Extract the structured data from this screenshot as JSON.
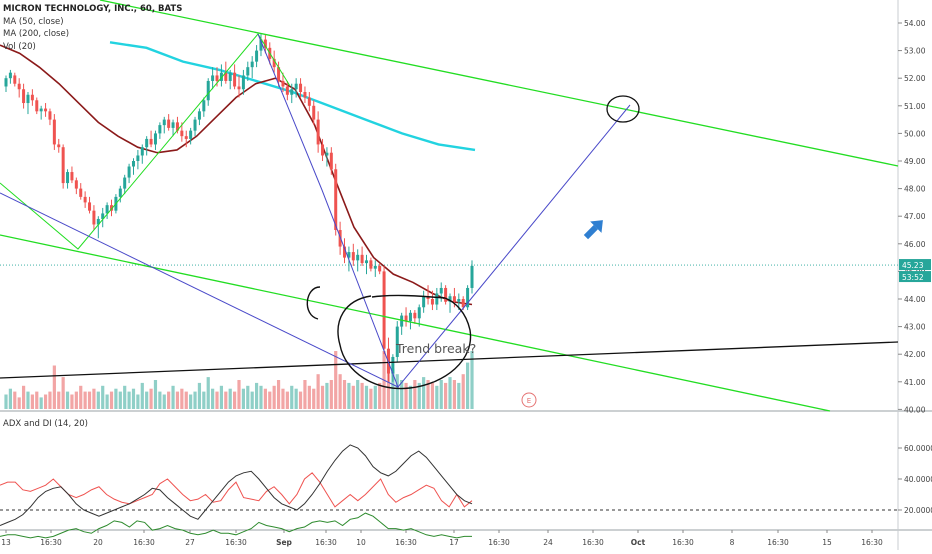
{
  "chart_data": {
    "type": "line",
    "title": "MICRON TECHNOLOGY, INC., 60, BATS",
    "series": [
      {
        "name": "MA (50, close)",
        "color": "#8b1a1a"
      },
      {
        "name": "MA (200, close)",
        "color": "#22d3e0"
      },
      {
        "name": "Vol (20)"
      }
    ],
    "y_ticks": [
      "54.00",
      "53.00",
      "52.00",
      "51.00",
      "50.00",
      "49.00",
      "48.00",
      "47.00",
      "46.00",
      "45.00",
      "44.00",
      "43.00",
      "42.00",
      "41.00",
      "40.00"
    ],
    "ylim": [
      40,
      54
    ],
    "current_price": "45.23",
    "countdown": "53:52",
    "x_ticks": [
      "13",
      "16:30",
      "20",
      "16:30",
      "27",
      "16:30",
      "Sep",
      "16:30",
      "10",
      "16:30",
      "17",
      "16:30",
      "24",
      "16:30",
      "Oct",
      "16:30",
      "8",
      "16:30",
      "15",
      "16:30"
    ],
    "annotations": {
      "trend_break_text": "Trend break?",
      "earnings_marker": "E"
    },
    "ma50": [
      53.2,
      52.9,
      52.4,
      51.8,
      51.1,
      50.4,
      49.9,
      49.5,
      49.3,
      49.4,
      49.9,
      50.6,
      51.3,
      51.8,
      52.0,
      51.6,
      50.3,
      48.4,
      46.6,
      45.5,
      44.9,
      44.6,
      44.2,
      43.9,
      43.8
    ],
    "ma200": [
      53.3,
      53.1,
      52.6,
      52.3,
      51.9,
      51.5,
      51.0,
      50.5,
      50.0,
      49.6,
      49.4
    ],
    "candles": [
      [
        51.7,
        52.1,
        51.5,
        52.0
      ],
      [
        52.0,
        52.3,
        51.8,
        52.2
      ],
      [
        52.1,
        52.2,
        51.7,
        51.8
      ],
      [
        51.8,
        52.0,
        51.3,
        51.6
      ],
      [
        51.6,
        51.8,
        50.9,
        51.1
      ],
      [
        51.1,
        51.5,
        50.7,
        51.4
      ],
      [
        51.4,
        51.6,
        51.0,
        51.2
      ],
      [
        51.2,
        51.3,
        50.7,
        50.8
      ],
      [
        50.8,
        51.0,
        50.5,
        50.9
      ],
      [
        50.9,
        51.1,
        50.6,
        50.8
      ],
      [
        50.8,
        50.9,
        50.3,
        50.5
      ],
      [
        50.5,
        50.7,
        49.4,
        49.6
      ],
      [
        49.6,
        49.8,
        49.3,
        49.5
      ],
      [
        49.5,
        49.6,
        48.0,
        48.2
      ],
      [
        48.2,
        48.7,
        48.0,
        48.6
      ],
      [
        48.6,
        48.8,
        48.2,
        48.3
      ],
      [
        48.3,
        48.4,
        47.8,
        48.0
      ],
      [
        48.0,
        48.2,
        47.6,
        47.7
      ],
      [
        47.7,
        47.9,
        47.3,
        47.5
      ],
      [
        47.5,
        47.7,
        47.1,
        47.2
      ],
      [
        47.2,
        47.4,
        46.5,
        46.7
      ],
      [
        46.7,
        47.0,
        46.2,
        46.9
      ],
      [
        46.9,
        47.3,
        46.6,
        47.1
      ],
      [
        47.1,
        47.5,
        46.9,
        47.4
      ],
      [
        47.4,
        47.6,
        47.0,
        47.2
      ],
      [
        47.2,
        47.8,
        47.1,
        47.7
      ],
      [
        47.7,
        48.1,
        47.5,
        48.0
      ],
      [
        48.0,
        48.5,
        47.8,
        48.4
      ],
      [
        48.4,
        48.9,
        48.2,
        48.8
      ],
      [
        48.8,
        49.1,
        48.5,
        49.0
      ],
      [
        49.0,
        49.4,
        48.7,
        49.2
      ],
      [
        49.2,
        49.6,
        48.9,
        49.5
      ],
      [
        49.5,
        49.9,
        49.2,
        49.8
      ],
      [
        49.8,
        50.1,
        49.5,
        49.6
      ],
      [
        49.6,
        50.1,
        49.4,
        50.0
      ],
      [
        50.0,
        50.4,
        49.8,
        50.3
      ],
      [
        50.3,
        50.6,
        50.0,
        50.5
      ],
      [
        50.5,
        50.7,
        50.1,
        50.2
      ],
      [
        50.2,
        50.5,
        49.9,
        50.4
      ],
      [
        50.4,
        50.6,
        50.0,
        50.1
      ],
      [
        50.1,
        50.4,
        49.7,
        49.9
      ],
      [
        49.9,
        50.1,
        49.5,
        49.8
      ],
      [
        49.8,
        50.2,
        49.6,
        50.1
      ],
      [
        50.1,
        50.6,
        49.9,
        50.5
      ],
      [
        50.5,
        50.9,
        50.3,
        50.8
      ],
      [
        50.8,
        51.3,
        50.6,
        51.2
      ],
      [
        51.2,
        52.0,
        51.0,
        51.9
      ],
      [
        51.9,
        52.4,
        51.6,
        52.1
      ],
      [
        52.1,
        52.4,
        51.7,
        51.9
      ],
      [
        51.9,
        52.5,
        51.7,
        52.2
      ],
      [
        52.2,
        52.6,
        51.8,
        51.9
      ],
      [
        51.9,
        52.3,
        51.6,
        52.2
      ],
      [
        52.2,
        52.5,
        51.6,
        51.7
      ],
      [
        51.7,
        52.1,
        51.3,
        51.6
      ],
      [
        51.6,
        52.3,
        51.4,
        52.1
      ],
      [
        52.1,
        52.6,
        51.9,
        52.4
      ],
      [
        52.4,
        52.8,
        52.0,
        52.6
      ],
      [
        52.6,
        53.2,
        52.4,
        53.0
      ],
      [
        53.0,
        53.6,
        52.8,
        53.4
      ],
      [
        53.4,
        53.6,
        52.9,
        53.1
      ],
      [
        53.1,
        53.3,
        52.5,
        52.7
      ],
      [
        52.7,
        53.0,
        52.2,
        52.4
      ],
      [
        52.4,
        52.6,
        51.7,
        51.9
      ],
      [
        51.9,
        52.2,
        51.5,
        51.7
      ],
      [
        51.7,
        51.9,
        51.2,
        51.4
      ],
      [
        51.4,
        51.8,
        51.1,
        51.6
      ],
      [
        51.6,
        52.0,
        51.3,
        51.8
      ],
      [
        51.8,
        52.0,
        51.3,
        51.5
      ],
      [
        51.5,
        51.7,
        51.1,
        51.3
      ],
      [
        51.3,
        51.5,
        50.8,
        51.0
      ],
      [
        51.0,
        51.2,
        50.3,
        50.5
      ],
      [
        50.5,
        50.8,
        49.3,
        49.6
      ],
      [
        49.6,
        49.8,
        49.0,
        49.2
      ],
      [
        49.2,
        49.5,
        48.8,
        49.3
      ],
      [
        49.3,
        49.5,
        48.5,
        48.7
      ],
      [
        48.7,
        48.9,
        46.3,
        46.5
      ],
      [
        46.5,
        46.8,
        45.6,
        45.9
      ],
      [
        45.9,
        46.2,
        45.3,
        45.5
      ],
      [
        45.5,
        45.9,
        45.0,
        45.7
      ],
      [
        45.7,
        46.0,
        45.2,
        45.4
      ],
      [
        45.4,
        45.8,
        45.0,
        45.6
      ],
      [
        45.6,
        45.9,
        45.2,
        45.3
      ],
      [
        45.3,
        45.6,
        44.9,
        45.4
      ],
      [
        45.4,
        45.5,
        45.0,
        45.1
      ],
      [
        45.1,
        45.4,
        44.8,
        45.2
      ],
      [
        45.2,
        45.3,
        44.9,
        45.0
      ],
      [
        45.0,
        45.2,
        42.0,
        42.2
      ],
      [
        42.2,
        42.6,
        41.0,
        41.3
      ],
      [
        41.3,
        42.0,
        41.0,
        41.9
      ],
      [
        41.9,
        43.2,
        41.7,
        43.0
      ],
      [
        43.0,
        43.5,
        42.7,
        43.4
      ],
      [
        43.4,
        43.7,
        43.0,
        43.2
      ],
      [
        43.2,
        43.6,
        42.9,
        43.5
      ],
      [
        43.5,
        43.6,
        43.1,
        43.3
      ],
      [
        43.3,
        43.8,
        43.0,
        43.7
      ],
      [
        43.7,
        44.3,
        43.5,
        44.1
      ],
      [
        44.1,
        44.5,
        43.8,
        44.0
      ],
      [
        44.0,
        44.3,
        43.6,
        43.8
      ],
      [
        43.8,
        44.4,
        43.6,
        44.2
      ],
      [
        44.2,
        44.6,
        43.9,
        44.4
      ],
      [
        44.4,
        44.5,
        43.8,
        43.9
      ],
      [
        43.9,
        44.2,
        43.5,
        44.1
      ],
      [
        44.1,
        44.4,
        43.7,
        43.9
      ],
      [
        43.9,
        44.2,
        43.6,
        44.0
      ],
      [
        44.0,
        44.1,
        43.6,
        43.7
      ],
      [
        43.7,
        44.5,
        43.6,
        44.4
      ],
      [
        44.4,
        45.4,
        44.2,
        45.2
      ]
    ],
    "volume": [
      0.25,
      0.35,
      0.3,
      0.2,
      0.4,
      0.3,
      0.25,
      0.3,
      0.2,
      0.25,
      0.3,
      0.75,
      0.3,
      0.55,
      0.3,
      0.25,
      0.3,
      0.4,
      0.3,
      0.3,
      0.35,
      0.3,
      0.4,
      0.25,
      0.3,
      0.35,
      0.3,
      0.4,
      0.3,
      0.35,
      0.25,
      0.45,
      0.3,
      0.35,
      0.5,
      0.3,
      0.25,
      0.3,
      0.4,
      0.3,
      0.35,
      0.3,
      0.25,
      0.3,
      0.45,
      0.3,
      0.55,
      0.35,
      0.3,
      0.4,
      0.3,
      0.35,
      0.3,
      0.5,
      0.35,
      0.4,
      0.3,
      0.45,
      0.4,
      0.35,
      0.3,
      0.4,
      0.5,
      0.35,
      0.3,
      0.4,
      0.35,
      0.3,
      0.5,
      0.4,
      0.35,
      0.6,
      0.4,
      0.45,
      0.5,
      1.0,
      0.6,
      0.5,
      0.45,
      0.4,
      0.5,
      0.45,
      0.4,
      0.35,
      0.4,
      0.45,
      1.0,
      0.9,
      0.7,
      0.6,
      0.5,
      0.45,
      0.4,
      0.5,
      0.45,
      0.55,
      0.5,
      0.45,
      0.4,
      0.5,
      0.45,
      0.55,
      0.5,
      0.45,
      0.6,
      0.8,
      1.0
    ],
    "adx_panel": {
      "label": "ADX and DI (14, 20)",
      "y_ticks": [
        "60.0000",
        "40.0000",
        "20.0000"
      ],
      "ylim": [
        0,
        70
      ],
      "di_plus": [
        36,
        38,
        38,
        33,
        32,
        34,
        36,
        40,
        35,
        30,
        28,
        30,
        33,
        35,
        30,
        27,
        25,
        24,
        26,
        28,
        30,
        37,
        40,
        35,
        30,
        26,
        27,
        30,
        25,
        26,
        33,
        38,
        28,
        27,
        26,
        32,
        35,
        30,
        24,
        30,
        40,
        44,
        38,
        30,
        22,
        26,
        30,
        26,
        30,
        35,
        40,
        30,
        25,
        28,
        30,
        33,
        36,
        34,
        26,
        22,
        30,
        22,
        26
      ],
      "di_minus": [
        3,
        4,
        4,
        3,
        2,
        3,
        2,
        3,
        5,
        7,
        8,
        6,
        5,
        8,
        10,
        13,
        12,
        9,
        13,
        12,
        7,
        8,
        10,
        8,
        7,
        5,
        4,
        5,
        7,
        5,
        5,
        4,
        6,
        8,
        12,
        10,
        9,
        8,
        6,
        8,
        9,
        12,
        13,
        12,
        13,
        10,
        14,
        15,
        18,
        16,
        12,
        8,
        8,
        7,
        8,
        6,
        4,
        3,
        4,
        3,
        2,
        3,
        3
      ],
      "adx": [
        10,
        12,
        14,
        17,
        22,
        28,
        32,
        34,
        35,
        30,
        24,
        20,
        18,
        16,
        18,
        20,
        22,
        24,
        27,
        30,
        34,
        33,
        28,
        24,
        20,
        16,
        14,
        20,
        26,
        32,
        38,
        42,
        44,
        45,
        40,
        34,
        28,
        24,
        22,
        20,
        24,
        30,
        37,
        45,
        52,
        58,
        62,
        60,
        55,
        48,
        44,
        42,
        45,
        50,
        55,
        58,
        54,
        48,
        42,
        36,
        30,
        26,
        24
      ],
      "reference_level": 20
    }
  }
}
